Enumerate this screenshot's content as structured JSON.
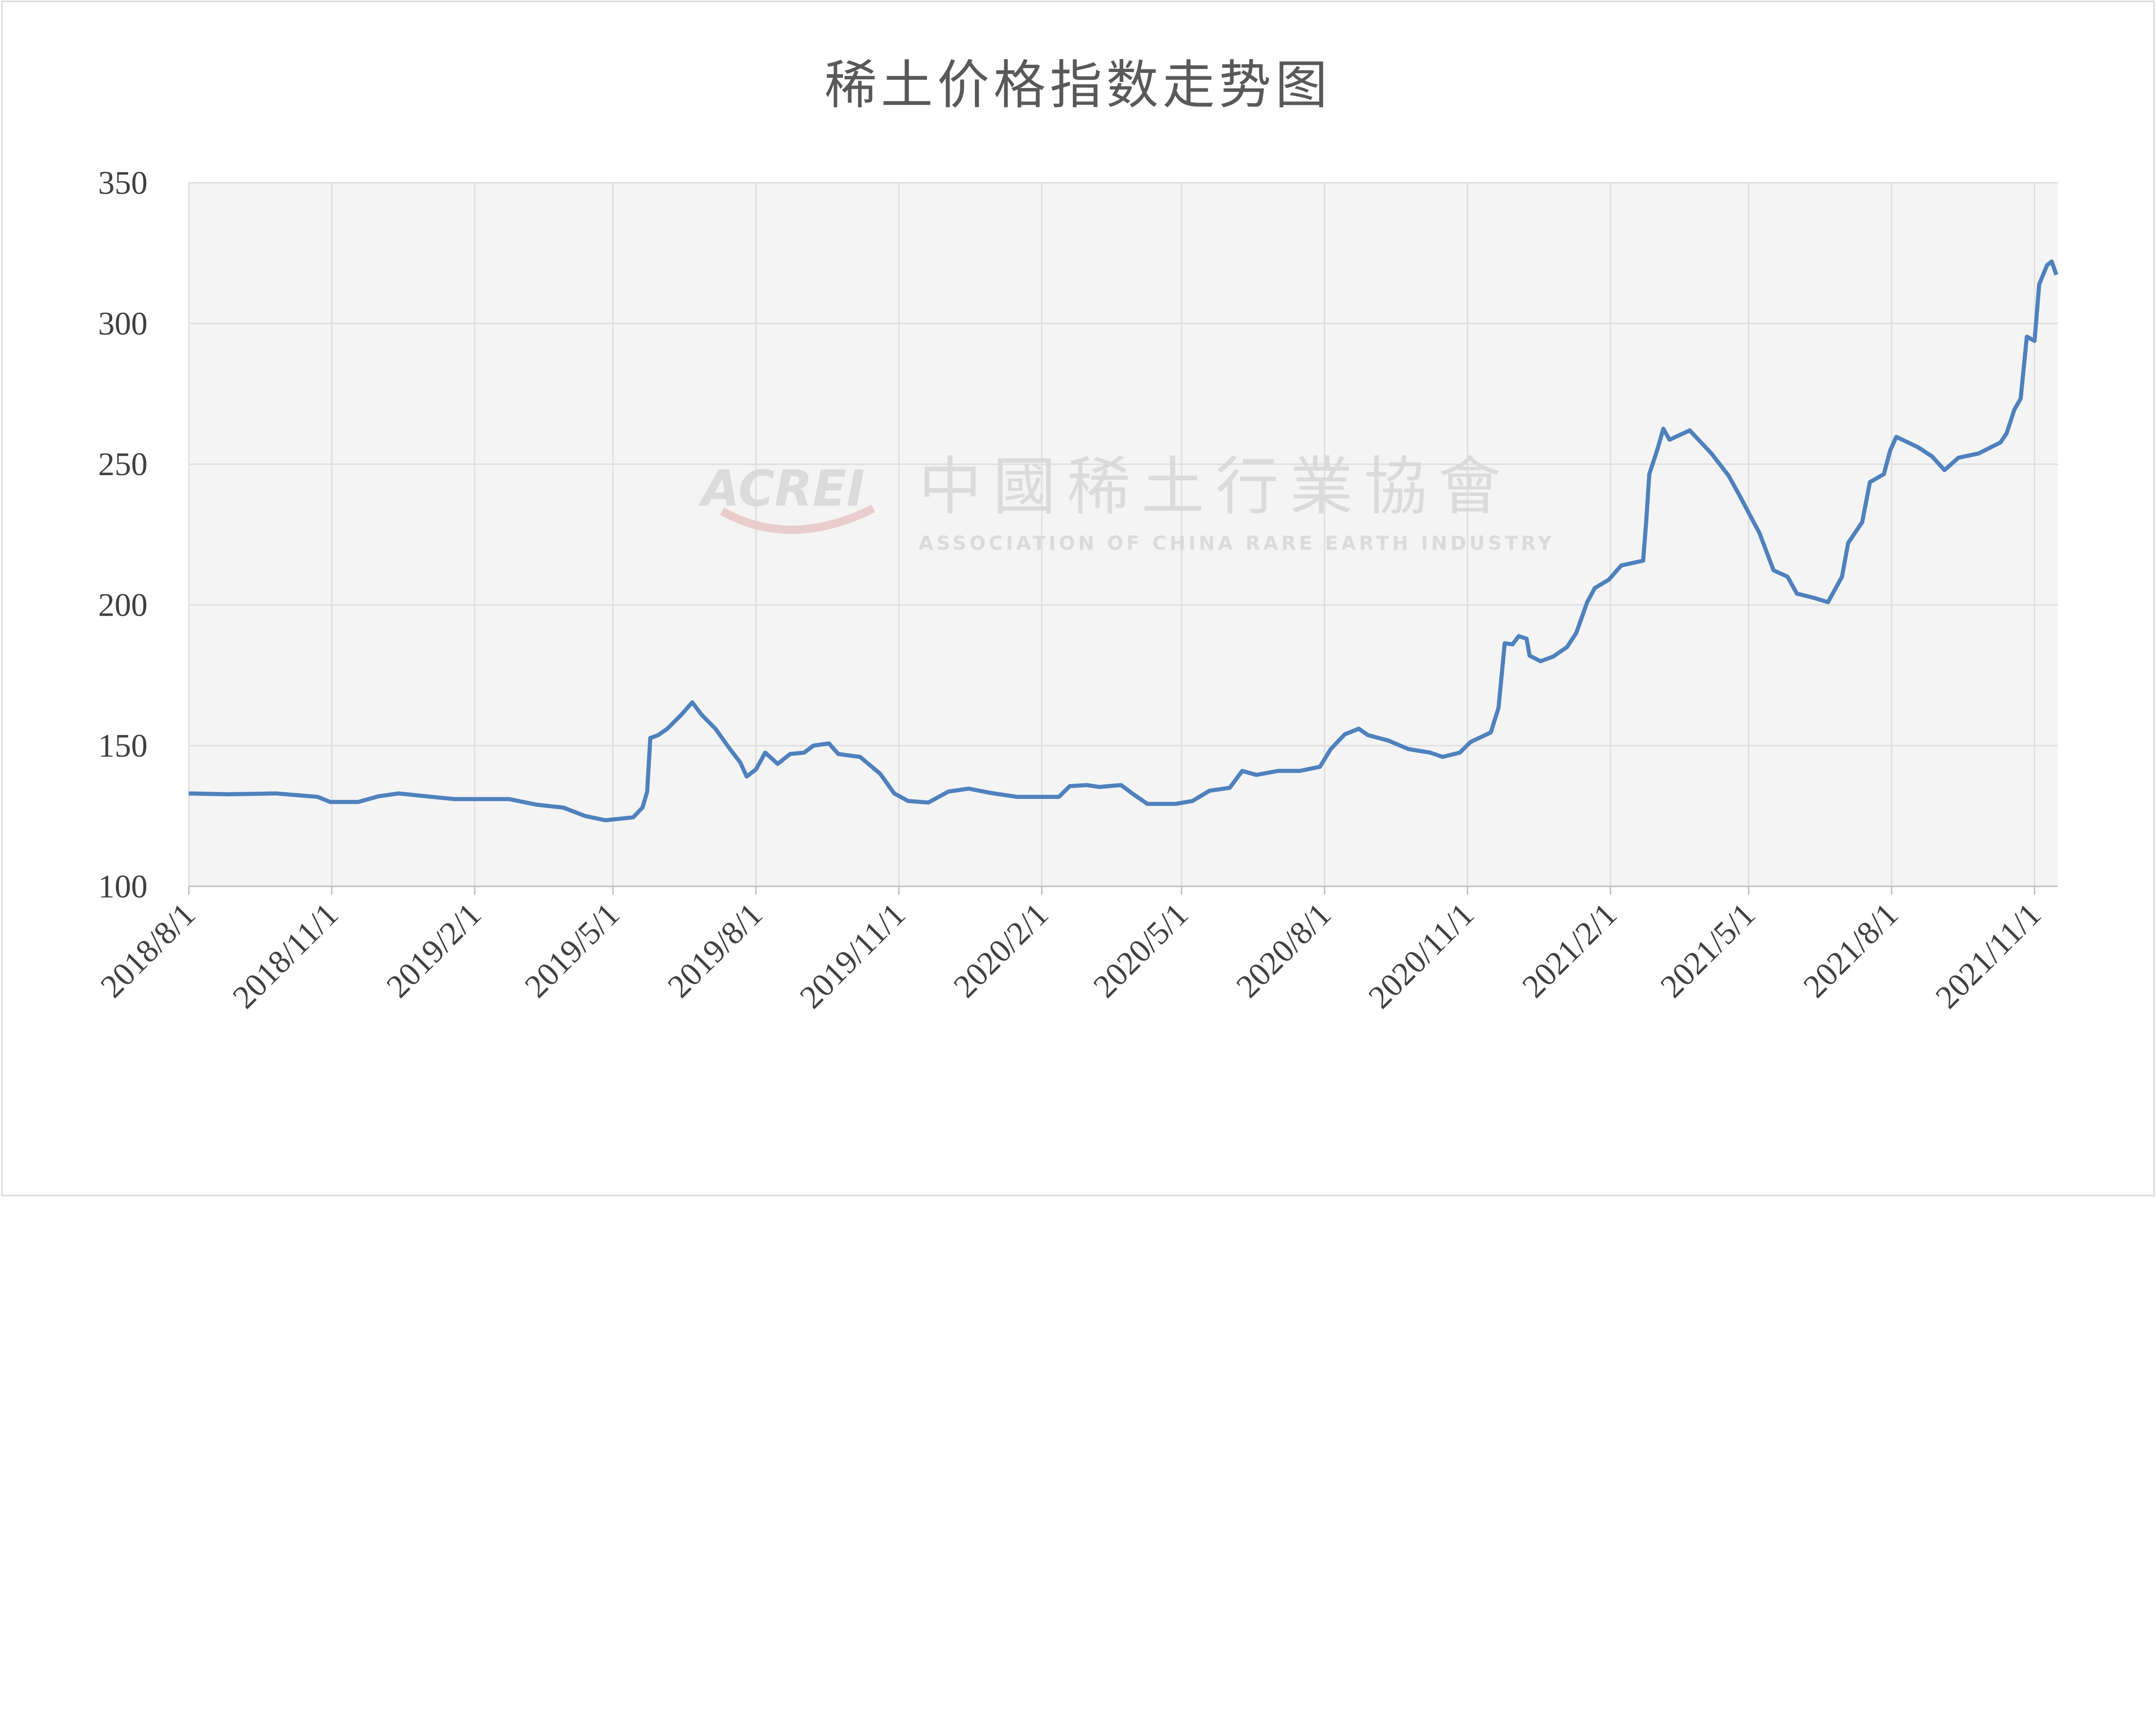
{
  "chart_data": {
    "type": "line",
    "title": "稀土价格指数走势图",
    "xlabel": "",
    "ylabel": "",
    "ylim": [
      100,
      350
    ],
    "yticks": [
      "100",
      "150",
      "200",
      "250",
      "300",
      "350"
    ],
    "xticks": [
      "2018/8/1",
      "2018/11/1",
      "2019/2/1",
      "2019/5/1",
      "2019/8/1",
      "2019/11/1",
      "2020/2/1",
      "2020/5/1",
      "2020/8/1",
      "2020/11/1",
      "2021/2/1",
      "2021/5/1",
      "2021/8/1",
      "2021/11/1"
    ],
    "xlim": [
      "2018-08-01",
      "2021-11-16"
    ],
    "grid": true,
    "legend": "none",
    "line_color": "#4f81bd",
    "plot_background": "#f2f2f2",
    "watermark": {
      "logo": "ACREI",
      "name": "中國稀土行業協會",
      "subtitle": "ASSOCIATION OF CHINA RARE EARTH INDUSTRY"
    },
    "series": [
      {
        "x": [
          "2018-08-01",
          "2018-08-26",
          "2018-09-26",
          "2018-10-23",
          "2018-10-31",
          "2018-11-18",
          "2018-12-01",
          "2018-12-14",
          "2019-01-01",
          "2019-01-19",
          "2019-02-23",
          "2019-03-13",
          "2019-03-30",
          "2019-04-13",
          "2019-04-26",
          "2019-05-14",
          "2019-05-20",
          "2019-05-23",
          "2019-05-25",
          "2019-05-30",
          "2019-06-05",
          "2019-06-14",
          "2019-06-21",
          "2019-06-27",
          "2019-07-06",
          "2019-07-15",
          "2019-07-22",
          "2019-07-26",
          "2019-08-01",
          "2019-08-07",
          "2019-08-15",
          "2019-08-23",
          "2019-09-01",
          "2019-09-07",
          "2019-09-17",
          "2019-09-23",
          "2019-10-07",
          "2019-10-20",
          "2019-10-29",
          "2019-11-07",
          "2019-11-20",
          "2019-12-03",
          "2019-12-16",
          "2019-12-30",
          "2020-01-16",
          "2020-02-12",
          "2020-02-19",
          "2020-03-01",
          "2020-03-09",
          "2020-03-23",
          "2020-03-31",
          "2020-04-09",
          "2020-04-27",
          "2020-05-08",
          "2020-05-19",
          "2020-06-01",
          "2020-06-09",
          "2020-06-18",
          "2020-07-02",
          "2020-07-16",
          "2020-07-29",
          "2020-08-05",
          "2020-08-14",
          "2020-08-23",
          "2020-08-29",
          "2020-09-11",
          "2020-09-24",
          "2020-10-08",
          "2020-10-16",
          "2020-10-27",
          "2020-11-03",
          "2020-11-16",
          "2020-11-21",
          "2020-11-25",
          "2020-11-30",
          "2020-12-04",
          "2020-12-09",
          "2020-12-11",
          "2020-12-18",
          "2020-12-26",
          "2021-01-04",
          "2021-01-10",
          "2021-01-17",
          "2021-01-22",
          "2021-01-31",
          "2021-02-08",
          "2021-02-22",
          "2021-02-24",
          "2021-02-26",
          "2021-03-03",
          "2021-03-07",
          "2021-03-11",
          "2021-03-24",
          "2021-04-07",
          "2021-04-18",
          "2021-04-25",
          "2021-05-08",
          "2021-05-17",
          "2021-05-26",
          "2021-06-01",
          "2021-06-12",
          "2021-06-21",
          "2021-06-30",
          "2021-07-04",
          "2021-07-13",
          "2021-07-18",
          "2021-07-27",
          "2021-07-31",
          "2021-08-04",
          "2021-08-18",
          "2021-08-27",
          "2021-09-04",
          "2021-09-13",
          "2021-09-26",
          "2021-10-10",
          "2021-10-14",
          "2021-10-19",
          "2021-10-23",
          "2021-10-27",
          "2021-11-01",
          "2021-11-04",
          "2021-11-09",
          "2021-11-12",
          "2021-11-15"
        ],
        "y": [
          133,
          132.7,
          133,
          131.8,
          130,
          130,
          132,
          133,
          132,
          131,
          131,
          129,
          128,
          125,
          123.5,
          124.5,
          128,
          133.6,
          152.7,
          153.7,
          156,
          161,
          165.4,
          161,
          156,
          149,
          144,
          139,
          141.5,
          147.5,
          143.5,
          147,
          147.5,
          150,
          150.8,
          147,
          146,
          140,
          133,
          130.3,
          129.8,
          133.7,
          134.7,
          133.2,
          131.8,
          131.8,
          135.6,
          136,
          135.3,
          136,
          132.7,
          129.3,
          129.3,
          130.3,
          134,
          135,
          141,
          139.6,
          141,
          141,
          142.5,
          148.8,
          154,
          156,
          153.7,
          151.8,
          148.8,
          147.5,
          146,
          147.5,
          151.3,
          154.7,
          163.5,
          186.4,
          186,
          188.9,
          188,
          182,
          180,
          181.6,
          185,
          190,
          201,
          206,
          209,
          214,
          215.7,
          229.4,
          246.5,
          254.8,
          262.6,
          258.7,
          262,
          253.8,
          246,
          239,
          225.5,
          212.3,
          210,
          204,
          202.5,
          201,
          210,
          222,
          229.4,
          243.6,
          246.5,
          254.8,
          259.7,
          256,
          252.8,
          247.9,
          252.3,
          253.8,
          257.7,
          261,
          269.4,
          273.3,
          295.3,
          293.8,
          313.9,
          320.7,
          322,
          317.3
        ]
      }
    ]
  }
}
